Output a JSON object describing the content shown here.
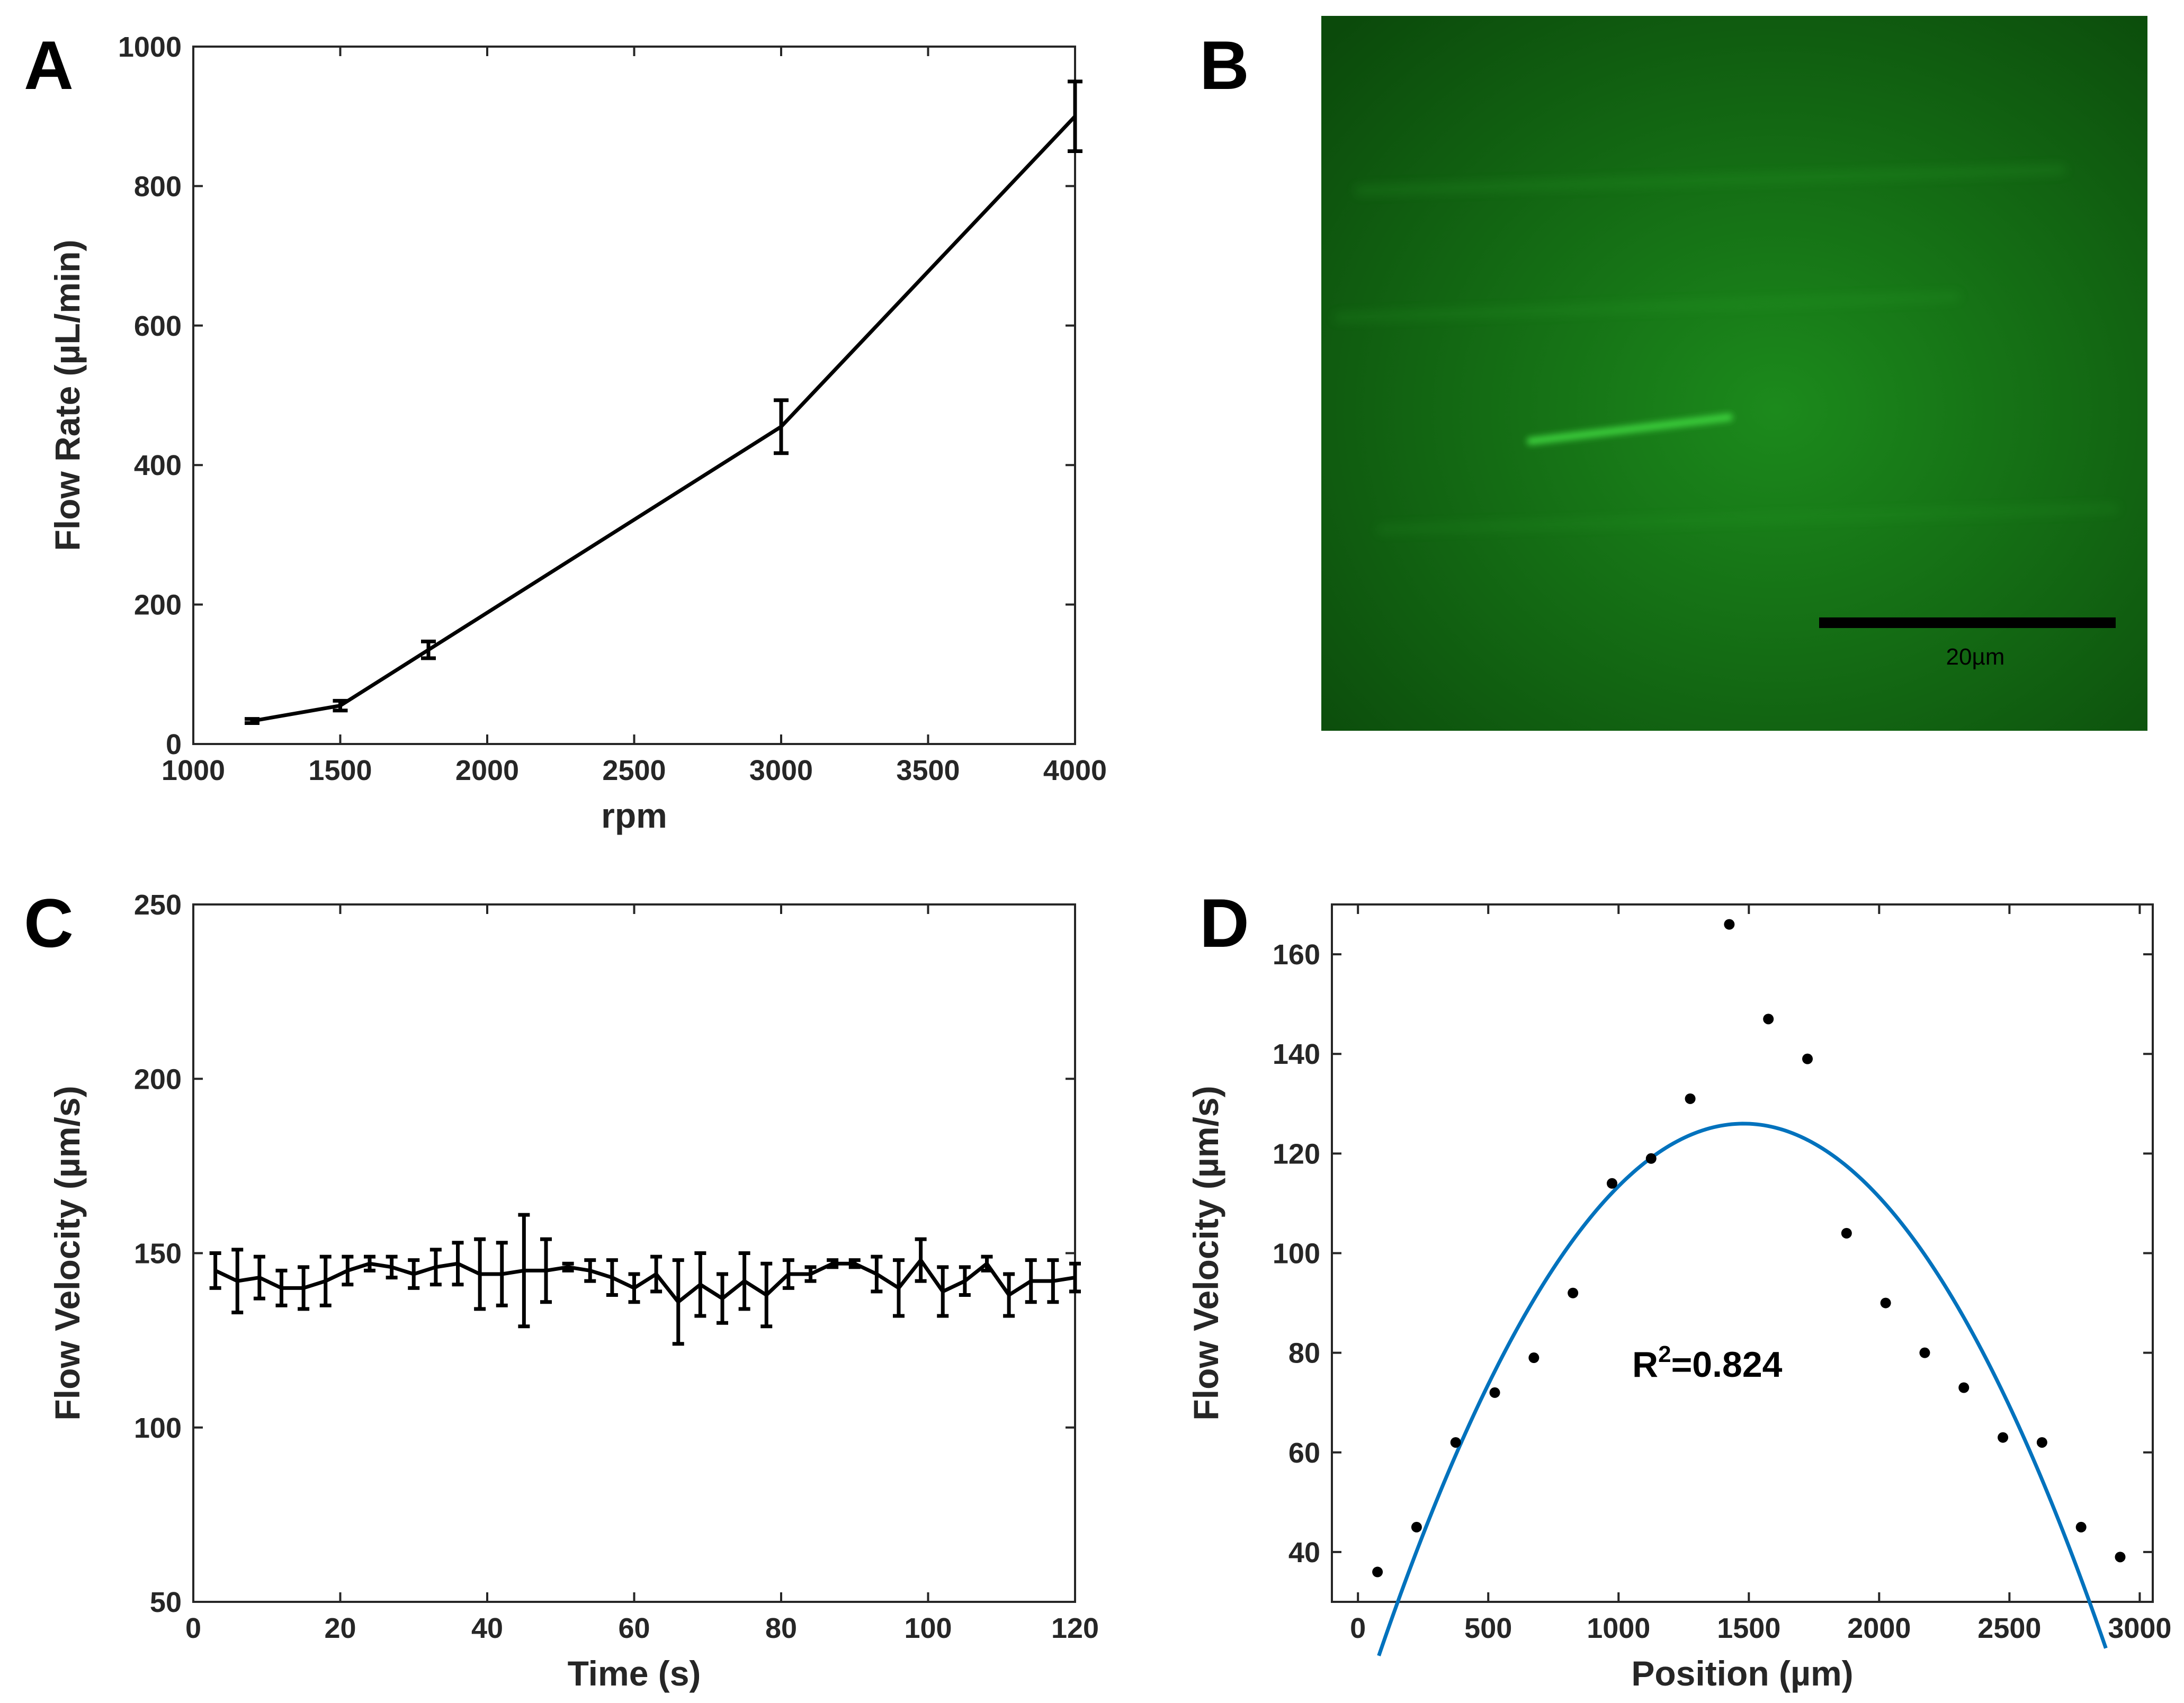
{
  "panels": {
    "A": {
      "letter": "A"
    },
    "B": {
      "letter": "B",
      "scale_bar_label": "20µm",
      "colors": {
        "bg_center": "#1c8a1c",
        "bg_edge": "#0b4a0b",
        "streak": "#3ed13e",
        "scale_bar": "#000000"
      }
    },
    "C": {
      "letter": "C"
    },
    "D": {
      "letter": "D",
      "annotation_base": "R",
      "annotation_sup": "2",
      "annotation_value": "=0.824"
    }
  },
  "chart_data": [
    {
      "id": "A",
      "type": "line",
      "title": "",
      "xlabel": "rpm",
      "ylabel": "Flow Rate (µL/min)",
      "xlim": [
        1000,
        4000
      ],
      "ylim": [
        0,
        1000
      ],
      "xticks": [
        1000,
        1500,
        2000,
        2500,
        3000,
        3500,
        4000
      ],
      "yticks": [
        0,
        200,
        400,
        600,
        800,
        1000
      ],
      "x": [
        1200,
        1500,
        1800,
        3000,
        4000
      ],
      "y": [
        33,
        55,
        135,
        455,
        900
      ],
      "yerr": [
        3,
        7,
        12,
        38,
        50
      ],
      "colors": {
        "line": "#000000"
      }
    },
    {
      "id": "C",
      "type": "line",
      "title": "",
      "xlabel": "Time (s)",
      "ylabel": "Flow Velocity (µm/s)",
      "xlim": [
        0,
        120
      ],
      "ylim": [
        50,
        250
      ],
      "xticks": [
        0,
        20,
        40,
        60,
        80,
        100,
        120
      ],
      "yticks": [
        50,
        100,
        150,
        200,
        250
      ],
      "x": [
        3,
        6,
        9,
        12,
        15,
        18,
        21,
        24,
        27,
        30,
        33,
        36,
        39,
        42,
        45,
        48,
        51,
        54,
        57,
        60,
        63,
        66,
        69,
        72,
        75,
        78,
        81,
        84,
        87,
        90,
        93,
        96,
        99,
        102,
        105,
        108,
        111,
        114,
        117,
        120
      ],
      "y": [
        145,
        142,
        143,
        140,
        140,
        142,
        145,
        147,
        146,
        144,
        146,
        147,
        144,
        144,
        145,
        145,
        146,
        145,
        143,
        140,
        144,
        136,
        141,
        137,
        142,
        138,
        144,
        144,
        147,
        147,
        144,
        140,
        148,
        139,
        142,
        147,
        138,
        142,
        142,
        143
      ],
      "yerr": [
        5,
        9,
        6,
        5,
        6,
        7,
        4,
        2,
        3,
        4,
        5,
        6,
        10,
        9,
        16,
        9,
        1,
        3,
        5,
        4,
        5,
        12,
        9,
        7,
        8,
        9,
        4,
        2,
        1,
        1,
        5,
        8,
        6,
        7,
        4,
        2,
        6,
        6,
        6,
        4
      ],
      "colors": {
        "line": "#000000"
      }
    },
    {
      "id": "D",
      "type": "scatter",
      "title": "",
      "xlabel": "Position (µm)",
      "ylabel": "Flow Velocity (µm/s)",
      "xlim": [
        -100,
        3050
      ],
      "ylim": [
        30,
        170
      ],
      "xticks": [
        0,
        500,
        1000,
        1500,
        2000,
        2500,
        3000
      ],
      "yticks": [
        40,
        60,
        80,
        100,
        120,
        140,
        160
      ],
      "x": [
        75,
        225,
        375,
        525,
        675,
        825,
        975,
        1125,
        1275,
        1425,
        1575,
        1725,
        1875,
        2025,
        2175,
        2325,
        2475,
        2625,
        2775,
        2925
      ],
      "y": [
        36,
        45,
        62,
        72,
        79,
        92,
        114,
        119,
        131,
        166,
        147,
        139,
        104,
        90,
        80,
        73,
        63,
        62,
        45,
        39
      ],
      "fit": {
        "type": "quadratic",
        "vertex_x": 1480,
        "vertex_y": 126,
        "a": -5.45e-05,
        "x_range": [
          80,
          2870
        ]
      },
      "annotation": "R2=0.824",
      "colors": {
        "points": "#000000",
        "fit": "#0072BD"
      }
    }
  ]
}
